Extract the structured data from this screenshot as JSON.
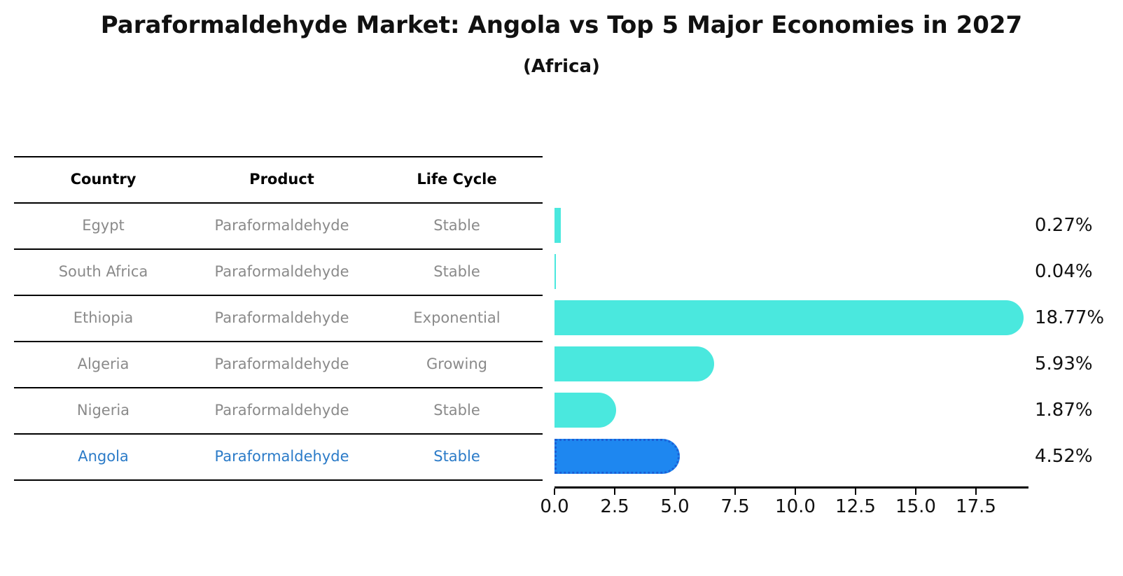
{
  "header": {
    "title": "Paraformaldehyde Market: Angola vs Top 5 Major Economies in 2027",
    "subtitle": "(Africa)"
  },
  "table": {
    "columns": [
      "Country",
      "Product",
      "Life Cycle"
    ],
    "rows": [
      {
        "country": "Egypt",
        "product": "Paraformaldehyde",
        "life_cycle": "Stable",
        "highlight": false
      },
      {
        "country": "South Africa",
        "product": "Paraformaldehyde",
        "life_cycle": "Stable",
        "highlight": false
      },
      {
        "country": "Ethiopia",
        "product": "Paraformaldehyde",
        "life_cycle": "Exponential",
        "highlight": false
      },
      {
        "country": "Algeria",
        "product": "Paraformaldehyde",
        "life_cycle": "Growing",
        "highlight": false
      },
      {
        "country": "Nigeria",
        "product": "Paraformaldehyde",
        "life_cycle": "Stable",
        "highlight": false
      },
      {
        "country": "Angola",
        "product": "Paraformaldehyde",
        "life_cycle": "Stable",
        "highlight": true
      }
    ]
  },
  "chart_data": {
    "type": "bar",
    "orientation": "horizontal",
    "categories": [
      "Egypt",
      "South Africa",
      "Ethiopia",
      "Algeria",
      "Nigeria",
      "Angola"
    ],
    "values": [
      0.27,
      0.04,
      18.77,
      5.93,
      1.87,
      4.52
    ],
    "value_labels": [
      "0.27%",
      "0.04%",
      "18.77%",
      "5.93%",
      "1.87%",
      "4.52%"
    ],
    "x_ticks": [
      "0.0",
      "2.5",
      "5.0",
      "7.5",
      "10.0",
      "12.5",
      "15.0",
      "17.5"
    ],
    "x_tick_values": [
      0,
      2.5,
      5,
      7.5,
      10,
      12.5,
      15,
      17.5
    ],
    "xlim": [
      0,
      19.7
    ],
    "grid": false,
    "legend": "none",
    "bar_color": "#4AE8DE",
    "highlight": {
      "index": 5,
      "bar_color": "#1E87F0",
      "border_color": "#1B5FD6",
      "text_color": "#2B7BC8"
    }
  },
  "colors": {
    "table_text": "#8A8A8A",
    "header_text": "#000000",
    "title_text": "#111111",
    "line": "#000000"
  }
}
